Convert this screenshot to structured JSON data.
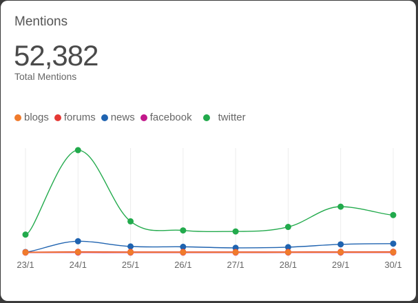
{
  "card": {
    "title": "Mentions",
    "total_value": "52,382",
    "total_label": "Total Mentions"
  },
  "colors": {
    "blogs": "#f07b2c",
    "forums": "#e53935",
    "news": "#1f63b0",
    "facebook": "#c2188b",
    "twitter": "#22aa4c"
  },
  "chart_data": {
    "type": "line",
    "title": "",
    "xlabel": "",
    "ylabel": "",
    "x": [
      "23/1",
      "24/1",
      "25/1",
      "26/1",
      "27/1",
      "28/1",
      "29/1",
      "30/1"
    ],
    "ylim": [
      0,
      1500
    ],
    "grid": "vertical",
    "legend_position": "top-left",
    "series": [
      {
        "name": "blogs",
        "values": [
          4,
          8,
          6,
          6,
          5,
          6,
          7,
          7
        ]
      },
      {
        "name": "forums",
        "values": [
          8,
          14,
          12,
          12,
          11,
          12,
          13,
          14
        ]
      },
      {
        "name": "news",
        "values": [
          10,
          165,
          90,
          85,
          70,
          80,
          120,
          130
        ]
      },
      {
        "name": "facebook",
        "values": [
          2,
          3,
          2,
          2,
          2,
          3,
          3,
          3
        ]
      },
      {
        "name": "twitter",
        "values": [
          260,
          1470,
          450,
          320,
          305,
          370,
          660,
          540
        ]
      }
    ]
  }
}
